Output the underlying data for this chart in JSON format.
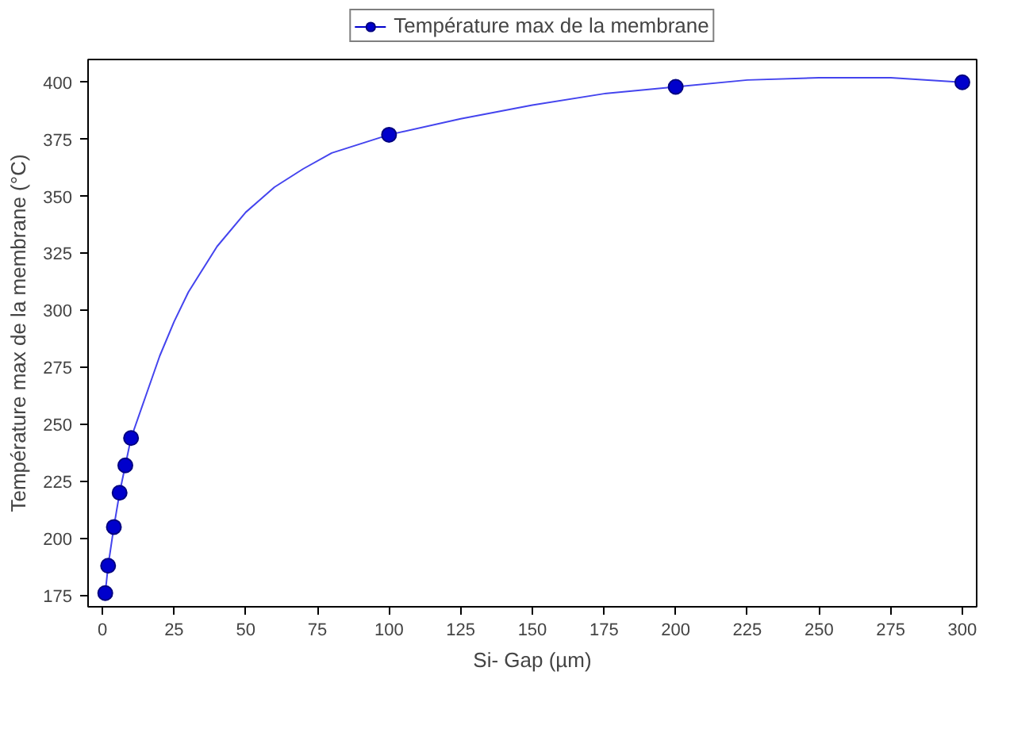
{
  "chart_data": {
    "type": "line",
    "xlabel": "Si- Gap (µm)",
    "ylabel": "Température max de la membrane (°C)",
    "series": [
      {
        "color": "#4444ee",
        "x": [
          1,
          2,
          4,
          6,
          8,
          10,
          15,
          20,
          25,
          30,
          40,
          50,
          60,
          70,
          80,
          90,
          100,
          125,
          150,
          175,
          200,
          225,
          250,
          275,
          300
        ],
        "values": [
          176,
          188,
          205,
          220,
          232,
          244,
          262,
          280,
          295,
          308,
          328,
          343,
          354,
          362,
          369,
          373,
          377,
          384,
          390,
          395,
          398,
          401,
          402,
          402,
          400
        ]
      },
      {
        "type": "scatter",
        "name": "Température max de la membrane",
        "color": "#0000cc",
        "x": [
          1,
          2,
          4,
          6,
          8,
          10,
          100,
          200,
          300
        ],
        "values": [
          176,
          188,
          205,
          220,
          232,
          244,
          377,
          398,
          400
        ],
        "marker": "circle"
      }
    ],
    "xlim": [
      -5,
      305
    ],
    "ylim": [
      170,
      410
    ],
    "xticks": [
      0,
      25,
      50,
      75,
      100,
      125,
      150,
      175,
      200,
      225,
      250,
      275,
      300
    ],
    "yticks": [
      175,
      200,
      225,
      250,
      275,
      300,
      325,
      350,
      375,
      400
    ],
    "grid": false,
    "legend": "top",
    "line_style": "solid"
  }
}
